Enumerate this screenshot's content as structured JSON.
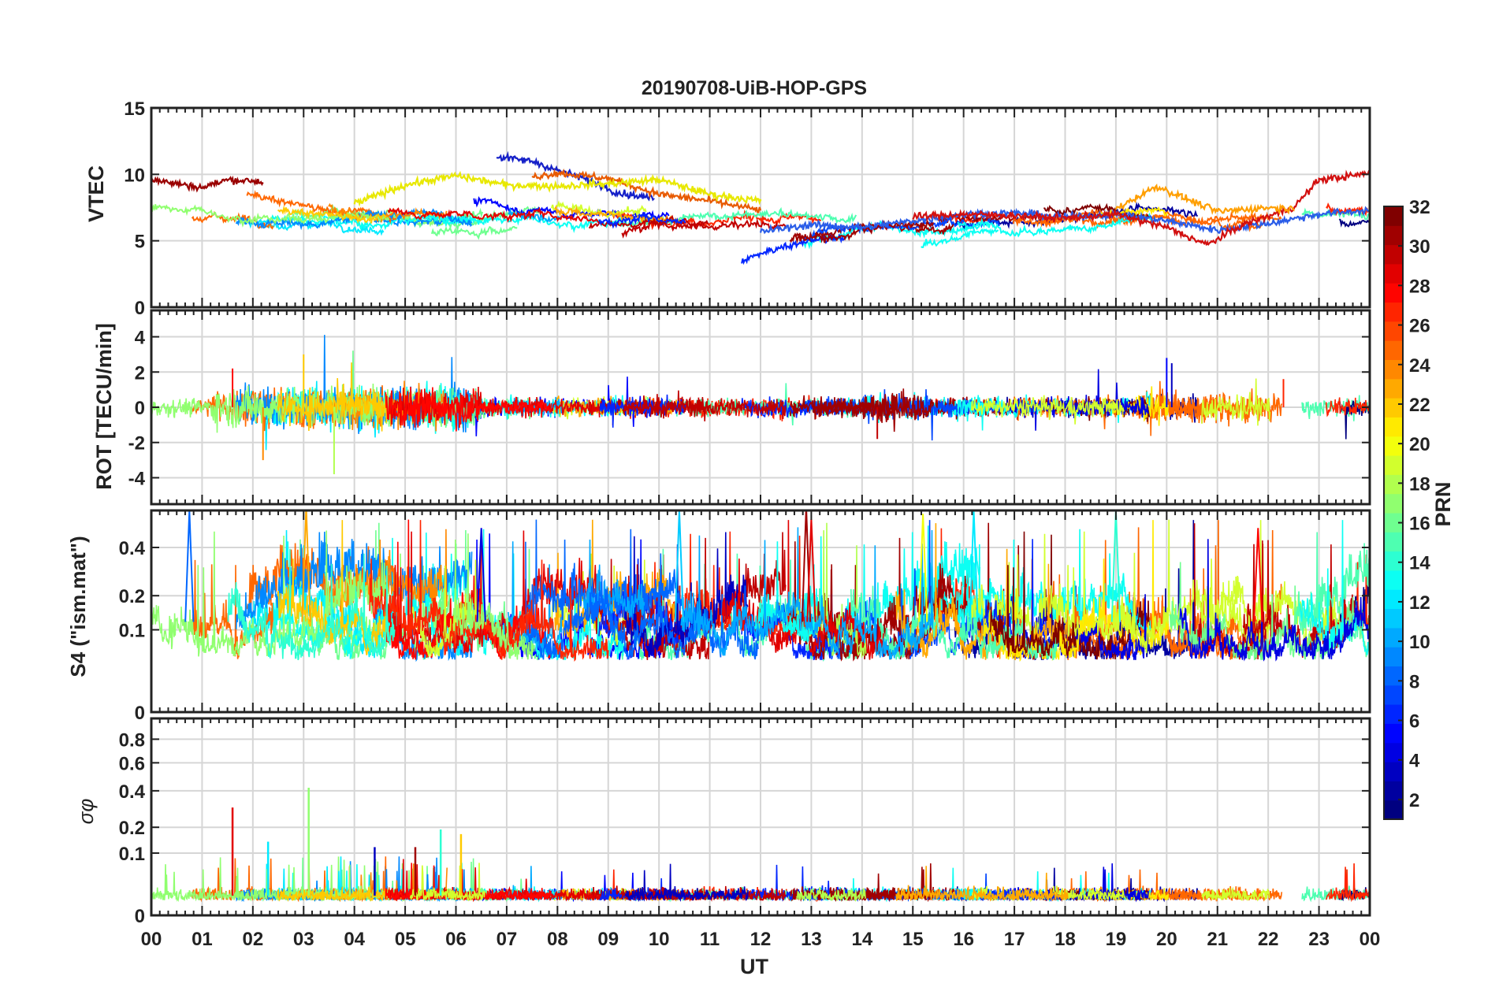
{
  "title": "20190708-UiB-HOP-GPS",
  "chart_data": [
    {
      "type": "line",
      "id": "vtec",
      "ylabel": "VTEC",
      "ylim": [
        0,
        15
      ],
      "yticks": [
        0,
        5,
        10,
        15
      ],
      "ytick_labels": [
        "0",
        "5",
        "10",
        "15"
      ],
      "note": "multi-series per PRN; values read approximately from figure",
      "series": [
        {
          "name": "PRN 31",
          "color": "#9a0000",
          "points": [
            [
              0,
              9.6
            ],
            [
              0.5,
              9.3
            ],
            [
              1,
              9.0
            ],
            [
              1.5,
              9.6
            ],
            [
              2,
              9.5
            ],
            [
              2.2,
              9.4
            ]
          ]
        },
        {
          "name": "PRN 2",
          "color": "#1520c8",
          "points": [
            [
              6.8,
              11.3
            ],
            [
              7.5,
              11.0
            ],
            [
              8,
              10.3
            ],
            [
              8.6,
              9.6
            ],
            [
              9.2,
              8.6
            ],
            [
              9.9,
              8.2
            ]
          ]
        },
        {
          "name": "PRN 25",
          "color": "#e85a00",
          "points": [
            [
              7.5,
              9.8
            ],
            [
              8,
              10.1
            ],
            [
              9,
              9.7
            ],
            [
              10,
              8.5
            ],
            [
              11,
              8.0
            ],
            [
              12,
              7.3
            ]
          ]
        },
        {
          "name": "PRN 19",
          "color": "#e8e800",
          "points": [
            [
              4,
              7.8
            ],
            [
              5,
              9.2
            ],
            [
              6,
              9.9
            ],
            [
              7,
              9.2
            ],
            [
              8,
              9.1
            ],
            [
              9,
              9.3
            ],
            [
              10,
              9.6
            ],
            [
              11,
              8.5
            ],
            [
              12,
              8.0
            ]
          ]
        },
        {
          "name": "PRN 5",
          "color": "#2a5de8",
          "points": [
            [
              12,
              5.7
            ],
            [
              13,
              6.2
            ],
            [
              14,
              6.0
            ],
            [
              15,
              6.5
            ],
            [
              16,
              7.0
            ],
            [
              17,
              7.1
            ],
            [
              18,
              6.8
            ],
            [
              19,
              7.0
            ],
            [
              20,
              6.5
            ],
            [
              21,
              5.8
            ],
            [
              22,
              6.3
            ],
            [
              23,
              7.0
            ],
            [
              24,
              7.3
            ]
          ]
        },
        {
          "name": "PRN 29",
          "color": "#d21010",
          "points": [
            [
              15,
              6.8
            ],
            [
              16,
              7.0
            ],
            [
              17,
              6.9
            ],
            [
              18,
              6.7
            ],
            [
              19,
              7.0
            ],
            [
              20,
              6.0
            ],
            [
              20.8,
              4.7
            ],
            [
              21.5,
              6.2
            ],
            [
              22.5,
              7.5
            ],
            [
              23,
              9.6
            ],
            [
              23.5,
              9.8
            ],
            [
              24,
              10.1
            ]
          ]
        },
        {
          "name": "PRN 22",
          "color": "#ff9f00",
          "points": [
            [
              19,
              7.4
            ],
            [
              19.8,
              9.1
            ],
            [
              20.3,
              8.3
            ],
            [
              21,
              7.2
            ],
            [
              22,
              7.5
            ],
            [
              22.5,
              7.4
            ]
          ]
        }
      ]
    },
    {
      "type": "line",
      "id": "rot",
      "ylabel": "ROT [TECU/min]",
      "ylim": [
        -5.5,
        5.5
      ],
      "yticks": [
        -4,
        -2,
        0,
        2,
        4
      ],
      "ytick_labels": [
        "-4",
        "-2",
        "0",
        "2",
        "4"
      ],
      "note": "noise band around 0; peaks approx +3 at 03, -3.8 at 03.6, +2.8 at 20"
    },
    {
      "type": "line",
      "id": "s4",
      "ylabel": "S4 (\"ism.mat\")",
      "ylim": [
        0,
        0.6
      ],
      "yscale": "sqrt",
      "yticks": [
        0,
        0.1,
        0.2,
        0.4
      ],
      "ytick_labels": [
        "0",
        "0.1",
        "0.2",
        "0.4"
      ],
      "note": "dense multi-PRN scintillation traces between approx 0.05 and 0.6"
    },
    {
      "type": "line",
      "id": "sigma",
      "ylabel": "σφ",
      "ylim": [
        0,
        1
      ],
      "yscale": "sqrt",
      "yticks": [
        0,
        0.1,
        0.2,
        0.4,
        0.6,
        0.8
      ],
      "ytick_labels": [
        "0",
        "0.1",
        "0.2",
        "0.4",
        "0.6",
        "0.8"
      ],
      "note": "mostly near 0; spikes approx 0.3 at 01.6, 0.42 at 03.1, 0.18 at 05.7-06.2"
    }
  ],
  "xaxis": {
    "label": "UT",
    "xlim": [
      0,
      24
    ],
    "tick_labels": [
      "00",
      "01",
      "02",
      "03",
      "04",
      "05",
      "06",
      "07",
      "08",
      "09",
      "10",
      "11",
      "12",
      "13",
      "14",
      "15",
      "16",
      "17",
      "18",
      "19",
      "20",
      "21",
      "22",
      "23",
      "00"
    ]
  },
  "colorbar": {
    "label": "PRN",
    "range": [
      1,
      32
    ],
    "tick_values": [
      2,
      4,
      6,
      8,
      10,
      12,
      14,
      16,
      18,
      20,
      22,
      24,
      26,
      28,
      30,
      32
    ],
    "tick_labels": [
      "2",
      "4",
      "6",
      "8",
      "10",
      "12",
      "14",
      "16",
      "18",
      "20",
      "22",
      "24",
      "26",
      "28",
      "30",
      "32"
    ],
    "colormap": "jet"
  }
}
